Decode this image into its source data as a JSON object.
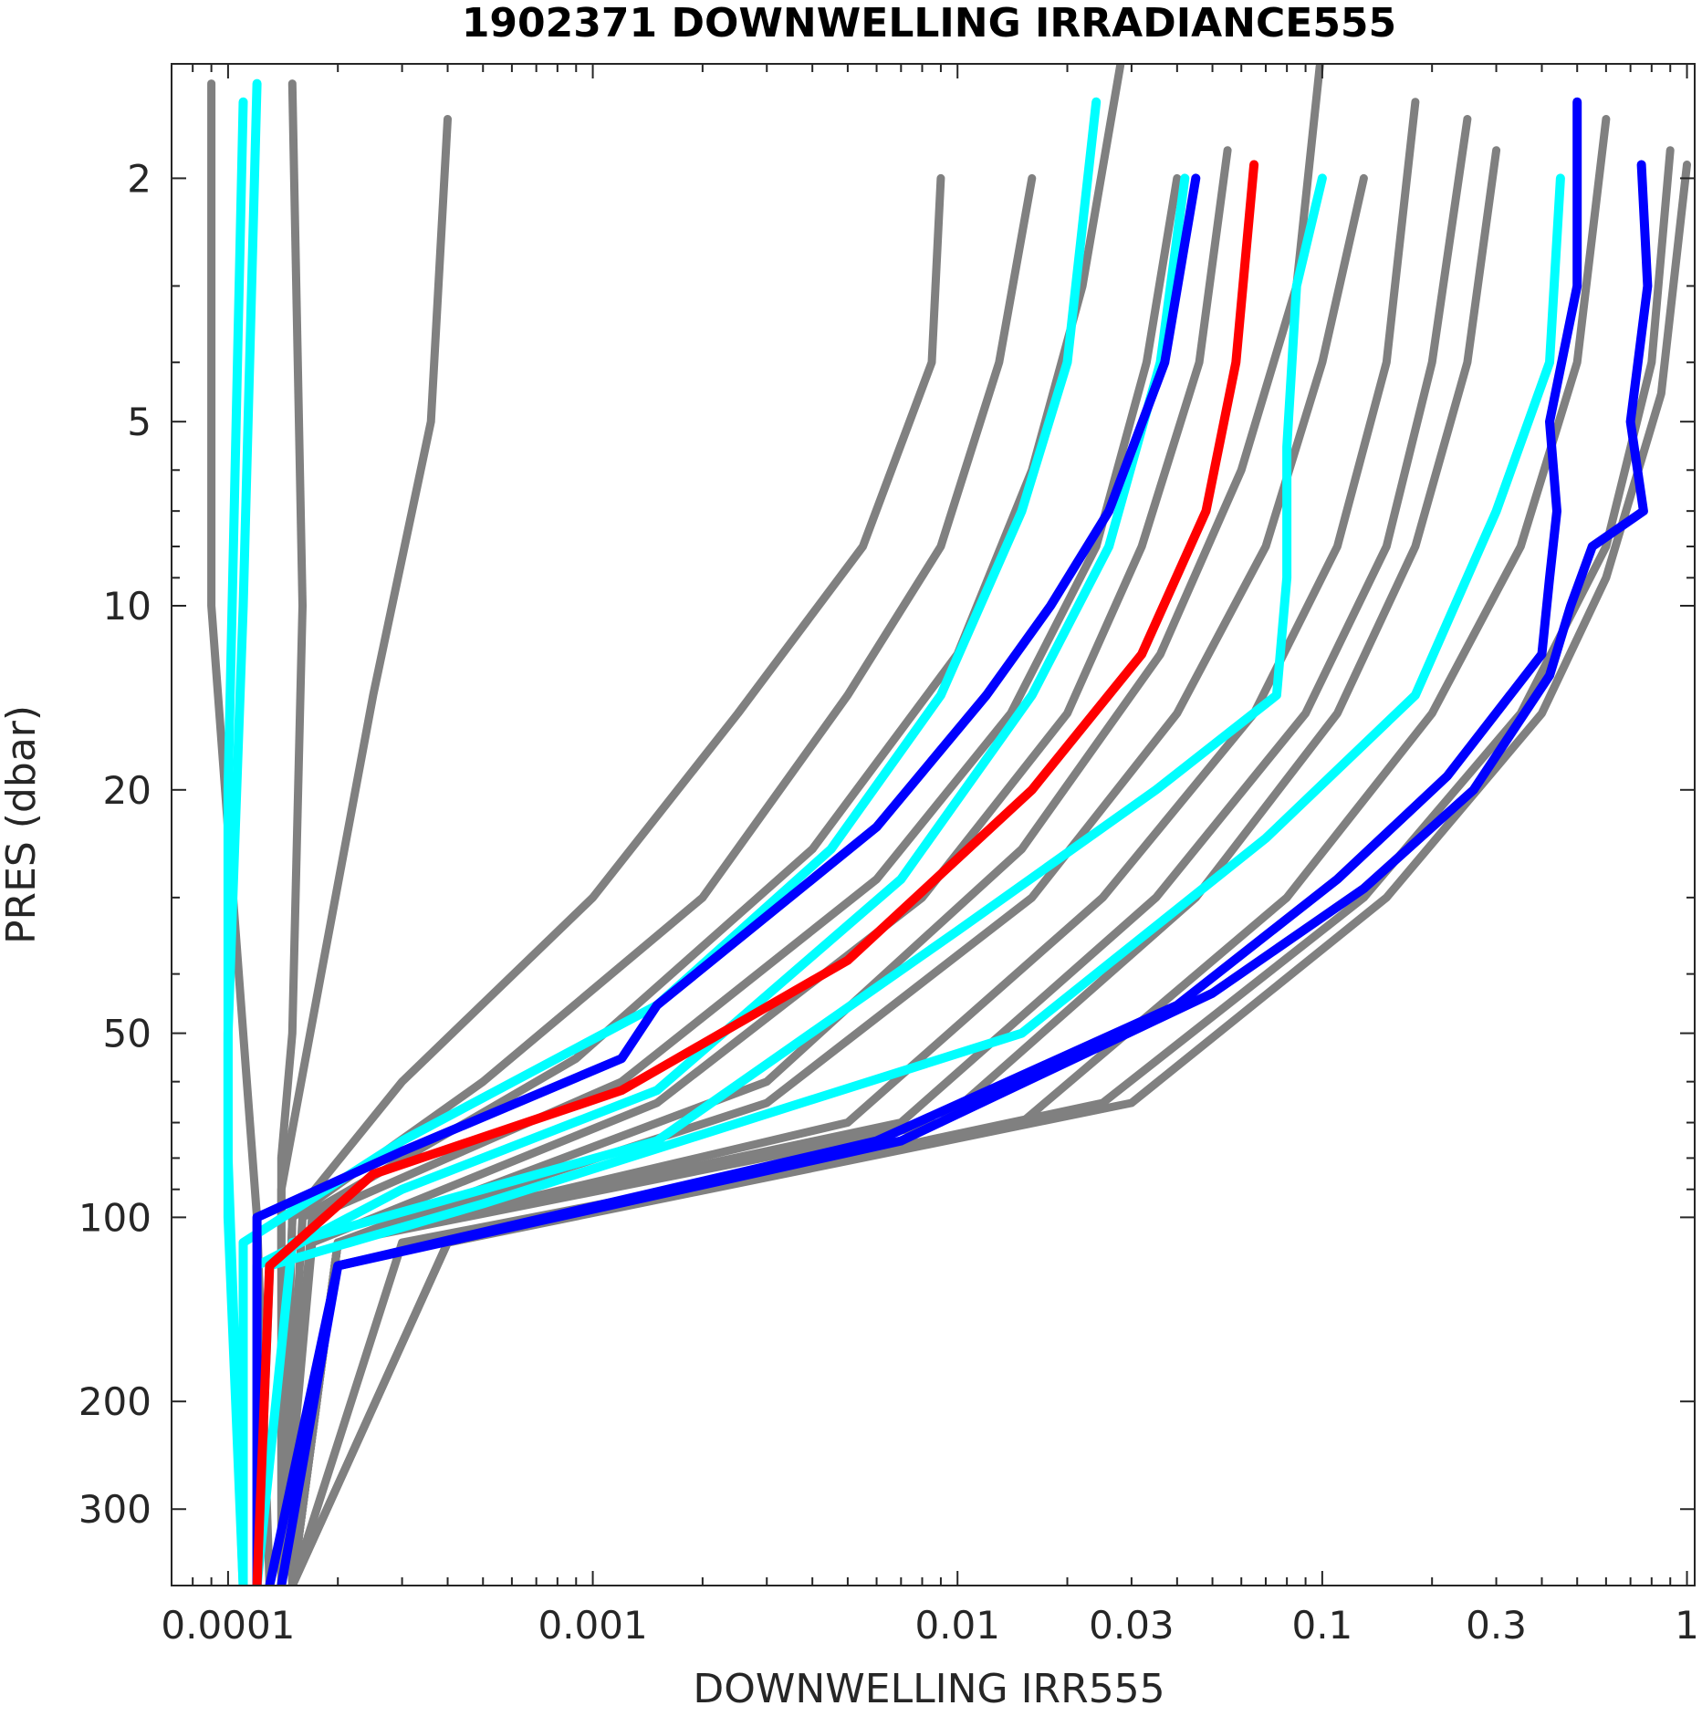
{
  "chart_data": {
    "type": "line",
    "title": "1902371  DOWNWELLING IRRADIANCE555",
    "xlabel": "DOWNWELLING IRR555",
    "ylabel": "PRES (dbar)",
    "x_scale": "log",
    "y_scale": "log",
    "y_reversed": true,
    "xlim": [
      7e-05,
      1.05
    ],
    "ylim": [
      1.3,
      400
    ],
    "x_ticks": [
      0.0001,
      0.001,
      0.01,
      0.03,
      0.1,
      0.3,
      1
    ],
    "x_tick_labels": [
      "0.0001",
      "0.001",
      "0.01",
      "0.03",
      "0.1",
      "0.3",
      "1"
    ],
    "y_ticks": [
      2,
      5,
      10,
      20,
      50,
      100,
      200,
      300
    ],
    "y_tick_labels": [
      "2",
      "5",
      "10",
      "20",
      "50",
      "100",
      "200",
      "300"
    ],
    "grid": false,
    "colors": {
      "background_profiles": "#808080",
      "highlight_a": "#00FFFF",
      "highlight_b": "#0000FF",
      "latest": "#FF0000"
    },
    "series": [
      {
        "color": "#808080",
        "values": [
          [
            0.00015,
            1.4
          ],
          [
            0.00016,
            10
          ],
          [
            0.00015,
            50
          ],
          [
            0.00014,
            80
          ],
          [
            0.00014,
            120
          ],
          [
            0.00015,
            400
          ]
        ]
      },
      {
        "color": "#808080",
        "values": [
          [
            9e-05,
            1.4
          ],
          [
            9e-05,
            10
          ],
          [
            0.00011,
            50
          ],
          [
            0.00012,
            100
          ],
          [
            0.00013,
            400
          ]
        ]
      },
      {
        "color": "#808080",
        "values": [
          [
            0.0004,
            1.6
          ],
          [
            0.00036,
            5
          ],
          [
            0.00025,
            14
          ],
          [
            0.00018,
            40
          ],
          [
            0.00014,
            90
          ],
          [
            0.00014,
            400
          ]
        ]
      },
      {
        "color": "#808080",
        "values": [
          [
            0.009,
            2
          ],
          [
            0.0085,
            4
          ],
          [
            0.0055,
            8
          ],
          [
            0.0025,
            15
          ],
          [
            0.001,
            30
          ],
          [
            0.0003,
            60
          ],
          [
            0.00015,
            100
          ],
          [
            0.00014,
            400
          ]
        ]
      },
      {
        "color": "#808080",
        "values": [
          [
            0.016,
            2
          ],
          [
            0.013,
            4
          ],
          [
            0.009,
            8
          ],
          [
            0.005,
            14
          ],
          [
            0.002,
            30
          ],
          [
            0.0005,
            60
          ],
          [
            0.00015,
            100
          ],
          [
            0.00014,
            400
          ]
        ]
      },
      {
        "color": "#808080",
        "values": [
          [
            0.028,
            1.3
          ],
          [
            0.022,
            3
          ],
          [
            0.016,
            6
          ],
          [
            0.01,
            12
          ],
          [
            0.004,
            25
          ],
          [
            0.0009,
            55
          ],
          [
            0.00016,
            100
          ],
          [
            0.00014,
            400
          ]
        ]
      },
      {
        "color": "#808080",
        "values": [
          [
            0.04,
            2
          ],
          [
            0.033,
            4
          ],
          [
            0.024,
            8
          ],
          [
            0.014,
            15
          ],
          [
            0.006,
            28
          ],
          [
            0.0012,
            60
          ],
          [
            0.00017,
            100
          ],
          [
            0.00014,
            400
          ]
        ]
      },
      {
        "color": "#808080",
        "values": [
          [
            0.055,
            1.8
          ],
          [
            0.046,
            4
          ],
          [
            0.032,
            8
          ],
          [
            0.02,
            15
          ],
          [
            0.008,
            30
          ],
          [
            0.0015,
            65
          ],
          [
            0.00017,
            110
          ],
          [
            0.00014,
            400
          ]
        ]
      },
      {
        "color": "#808080",
        "values": [
          [
            0.1,
            1.2
          ],
          [
            0.085,
            3
          ],
          [
            0.06,
            6
          ],
          [
            0.036,
            12
          ],
          [
            0.015,
            25
          ],
          [
            0.003,
            60
          ],
          [
            0.0002,
            110
          ],
          [
            0.00015,
            400
          ]
        ]
      },
      {
        "color": "#808080",
        "values": [
          [
            0.13,
            2
          ],
          [
            0.1,
            4
          ],
          [
            0.07,
            8
          ],
          [
            0.04,
            15
          ],
          [
            0.016,
            30
          ],
          [
            0.003,
            65
          ],
          [
            0.0002,
            110
          ],
          [
            0.00015,
            400
          ]
        ]
      },
      {
        "color": "#808080",
        "values": [
          [
            0.18,
            1.5
          ],
          [
            0.15,
            4
          ],
          [
            0.11,
            8
          ],
          [
            0.065,
            15
          ],
          [
            0.025,
            30
          ],
          [
            0.005,
            70
          ],
          [
            0.0002,
            110
          ],
          [
            0.00015,
            400
          ]
        ]
      },
      {
        "color": "#808080",
        "values": [
          [
            0.25,
            1.6
          ],
          [
            0.2,
            4
          ],
          [
            0.15,
            8
          ],
          [
            0.09,
            15
          ],
          [
            0.035,
            30
          ],
          [
            0.007,
            70
          ],
          [
            0.0002,
            110
          ],
          [
            0.00015,
            400
          ]
        ]
      },
      {
        "color": "#808080",
        "values": [
          [
            0.3,
            1.8
          ],
          [
            0.25,
            4
          ],
          [
            0.18,
            8
          ],
          [
            0.11,
            15
          ],
          [
            0.045,
            30
          ],
          [
            0.009,
            70
          ],
          [
            0.0002,
            110
          ],
          [
            0.00015,
            400
          ]
        ]
      },
      {
        "color": "#808080",
        "values": [
          [
            0.6,
            1.6
          ],
          [
            0.5,
            4
          ],
          [
            0.35,
            8
          ],
          [
            0.2,
            15
          ],
          [
            0.08,
            30
          ],
          [
            0.015,
            70
          ],
          [
            0.0003,
            110
          ],
          [
            0.00015,
            400
          ]
        ]
      },
      {
        "color": "#808080",
        "values": [
          [
            0.9,
            1.8
          ],
          [
            0.8,
            4
          ],
          [
            0.6,
            8
          ],
          [
            0.35,
            15
          ],
          [
            0.13,
            30
          ],
          [
            0.025,
            65
          ],
          [
            0.0004,
            110
          ],
          [
            0.00015,
            400
          ]
        ]
      },
      {
        "color": "#808080",
        "values": [
          [
            1.0,
            1.9
          ],
          [
            0.85,
            4.5
          ],
          [
            0.6,
            9
          ],
          [
            0.4,
            15
          ],
          [
            0.15,
            30
          ],
          [
            0.03,
            65
          ],
          [
            0.0004,
            110
          ],
          [
            0.00015,
            400
          ]
        ]
      },
      {
        "color": "#00FFFF",
        "values": [
          [
            0.00012,
            1.4
          ],
          [
            0.00011,
            10
          ],
          [
            0.0001,
            50
          ],
          [
            0.0001,
            100
          ],
          [
            0.00011,
            400
          ]
        ]
      },
      {
        "color": "#00FFFF",
        "values": [
          [
            0.00011,
            1.5
          ],
          [
            0.0001,
            20
          ],
          [
            0.0001,
            80
          ],
          [
            0.00011,
            400
          ]
        ]
      },
      {
        "color": "#00FFFF",
        "values": [
          [
            0.024,
            1.5
          ],
          [
            0.02,
            4
          ],
          [
            0.015,
            7
          ],
          [
            0.009,
            14
          ],
          [
            0.0045,
            25
          ],
          [
            0.0015,
            45
          ],
          [
            0.0003,
            75
          ],
          [
            0.00011,
            110
          ],
          [
            0.00011,
            400
          ]
        ]
      },
      {
        "color": "#00FFFF",
        "values": [
          [
            0.042,
            2
          ],
          [
            0.036,
            4
          ],
          [
            0.026,
            8
          ],
          [
            0.016,
            14
          ],
          [
            0.007,
            28
          ],
          [
            0.0015,
            62
          ],
          [
            0.0003,
            90
          ],
          [
            0.00012,
            120
          ],
          [
            0.00012,
            400
          ]
        ]
      },
      {
        "color": "#00FFFF",
        "values": [
          [
            0.1,
            2
          ],
          [
            0.085,
            3
          ],
          [
            0.08,
            5.5
          ],
          [
            0.08,
            9
          ],
          [
            0.075,
            14
          ],
          [
            0.035,
            20
          ],
          [
            0.01,
            34
          ],
          [
            0.0015,
            75
          ],
          [
            0.00015,
            110
          ],
          [
            0.00012,
            400
          ]
        ]
      },
      {
        "color": "#00FFFF",
        "values": [
          [
            0.45,
            2
          ],
          [
            0.42,
            4
          ],
          [
            0.3,
            7
          ],
          [
            0.18,
            14
          ],
          [
            0.07,
            24
          ],
          [
            0.015,
            50
          ],
          [
            0.0005,
            95
          ],
          [
            0.00013,
            120
          ],
          [
            0.00012,
            400
          ]
        ]
      },
      {
        "color": "#0000FF",
        "values": [
          [
            0.045,
            2
          ],
          [
            0.037,
            4
          ],
          [
            0.026,
            7
          ],
          [
            0.018,
            10
          ],
          [
            0.012,
            14
          ],
          [
            0.006,
            23
          ],
          [
            0.0015,
            45
          ],
          [
            0.0012,
            55
          ],
          [
            0.0003,
            78
          ],
          [
            0.00012,
            100
          ],
          [
            0.00012,
            400
          ]
        ]
      },
      {
        "color": "#0000FF",
        "values": [
          [
            0.5,
            1.5
          ],
          [
            0.5,
            3
          ],
          [
            0.42,
            5
          ],
          [
            0.44,
            7
          ],
          [
            0.42,
            9
          ],
          [
            0.4,
            12
          ],
          [
            0.22,
            19
          ],
          [
            0.11,
            28
          ],
          [
            0.04,
            45
          ],
          [
            0.006,
            75
          ],
          [
            0.0002,
            120
          ],
          [
            0.00013,
            400
          ]
        ]
      },
      {
        "color": "#0000FF",
        "values": [
          [
            0.75,
            1.9
          ],
          [
            0.78,
            3
          ],
          [
            0.7,
            5
          ],
          [
            0.76,
            7
          ],
          [
            0.55,
            8
          ],
          [
            0.48,
            10
          ],
          [
            0.42,
            13
          ],
          [
            0.26,
            20
          ],
          [
            0.13,
            29
          ],
          [
            0.05,
            43
          ],
          [
            0.007,
            75
          ],
          [
            0.0002,
            120
          ],
          [
            0.00014,
            400
          ]
        ]
      },
      {
        "color": "#FF0000",
        "values": [
          [
            0.065,
            1.9
          ],
          [
            0.058,
            4
          ],
          [
            0.048,
            7
          ],
          [
            0.032,
            12
          ],
          [
            0.016,
            20
          ],
          [
            0.005,
            38
          ],
          [
            0.0012,
            62
          ],
          [
            0.00025,
            85
          ],
          [
            0.00013,
            120
          ],
          [
            0.00012,
            400
          ]
        ]
      }
    ]
  }
}
